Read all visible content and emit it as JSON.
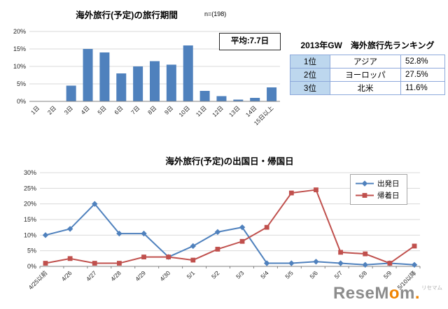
{
  "colors": {
    "bar": "#4F81BD",
    "departure_line": "#4F81BD",
    "return_line": "#C0504D",
    "grid": "#D9D9D9",
    "axis": "#808080",
    "table_border": "#8EA9DB",
    "rank_cell_bg": "#BDD7EE",
    "logo_gray": "#8C8C8C",
    "logo_orange": "#F08300"
  },
  "chart_data": [
    {
      "id": "trip-duration",
      "type": "bar",
      "title": "海外旅行(予定)の旅行期間",
      "n_label": "n=(198)",
      "annotation": "平均:7.7日",
      "categories": [
        "1日",
        "2日",
        "3日",
        "4日",
        "5日",
        "6日",
        "7日",
        "8日",
        "9日",
        "10日",
        "11日",
        "12日",
        "13日",
        "14日",
        "15日以上"
      ],
      "values": [
        0,
        0,
        4.5,
        15,
        14,
        8,
        10,
        11.5,
        10.5,
        16,
        3,
        1.5,
        0.5,
        1,
        4
      ],
      "ylabel": "",
      "ylim": [
        0,
        20
      ],
      "yticks": [
        0,
        5,
        10,
        15,
        20
      ],
      "y_format": "percent",
      "bar_color": "#4F81BD",
      "grid": true
    },
    {
      "id": "departure-return-dates",
      "type": "line",
      "title": "海外旅行(予定)の出国日・帰国日",
      "categories": [
        "4/25以前",
        "4/26",
        "4/27",
        "4/28",
        "4/29",
        "4/30",
        "5/1",
        "5/2",
        "5/3",
        "5/4",
        "5/5",
        "5/6",
        "5/7",
        "5/8",
        "5/9",
        "5/10以降"
      ],
      "series": [
        {
          "name": "出発日",
          "color": "#4F81BD",
          "marker": "diamond",
          "values": [
            10,
            12,
            20,
            10.5,
            10.5,
            3,
            6.5,
            11,
            12.5,
            1,
            1,
            1.5,
            1,
            0.5,
            1,
            0.5
          ]
        },
        {
          "name": "帰着日",
          "color": "#C0504D",
          "marker": "square",
          "values": [
            1,
            2.5,
            1,
            1,
            3,
            3,
            2,
            5.5,
            8,
            12.5,
            23.5,
            24.5,
            4.5,
            4,
            1,
            6.5
          ]
        }
      ],
      "ylim": [
        0,
        30
      ],
      "yticks": [
        0,
        5,
        10,
        15,
        20,
        25,
        30
      ],
      "y_format": "percent",
      "legend_position": "top-right",
      "grid": true
    },
    {
      "id": "destination-ranking",
      "type": "table",
      "title": "2013年GW　海外旅行先ランキング",
      "rows": [
        {
          "rank": "1位",
          "destination": "アジア",
          "share": "52.8%"
        },
        {
          "rank": "2位",
          "destination": "ヨーロッパ",
          "share": "27.5%"
        },
        {
          "rank": "3位",
          "destination": "北米",
          "share": "11.6%"
        }
      ]
    }
  ],
  "watermark": {
    "part1": "Rese",
    "part2": "M",
    "part3": "o",
    "part4": "m",
    "part5": ".",
    "caption": "リセマム"
  }
}
